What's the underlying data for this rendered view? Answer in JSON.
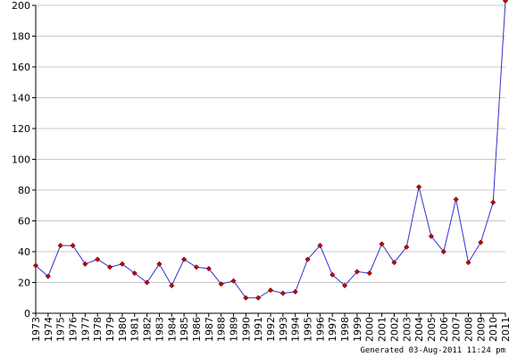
{
  "chart_data": {
    "type": "line",
    "title": "",
    "xlabel": "",
    "ylabel": "",
    "ylim": [
      0,
      200
    ],
    "yticks": [
      0,
      20,
      40,
      60,
      80,
      100,
      120,
      140,
      160,
      180,
      200
    ],
    "grid": true,
    "x": [
      "1973",
      "1974",
      "1975",
      "1976",
      "1977",
      "1978",
      "1979",
      "1980",
      "1981",
      "1982",
      "1983",
      "1984",
      "1985",
      "1986",
      "1987",
      "1988",
      "1989",
      "1990",
      "1991",
      "1992",
      "1993",
      "1994",
      "1995",
      "1996",
      "1997",
      "1998",
      "1999",
      "2000",
      "2001",
      "2002",
      "2003",
      "2004",
      "2005",
      "2006",
      "2007",
      "2008",
      "2009",
      "2010",
      "2011"
    ],
    "series": [
      {
        "values": [
          31,
          24,
          44,
          44,
          32,
          35,
          30,
          32,
          26,
          20,
          32,
          18,
          35,
          30,
          29,
          19,
          21,
          10,
          10,
          15,
          13,
          14,
          35,
          44,
          25,
          18,
          27,
          26,
          45,
          33,
          43,
          82,
          50,
          40,
          74,
          33,
          46,
          72,
          203
        ]
      }
    ],
    "colors": {
      "line": "#3333cc",
      "marker": "#cc0000",
      "grid": "#c8c8c8",
      "axis": "#000000"
    }
  },
  "footer": {
    "generated": "Generated 03-Aug-2011 11:24 pm"
  }
}
